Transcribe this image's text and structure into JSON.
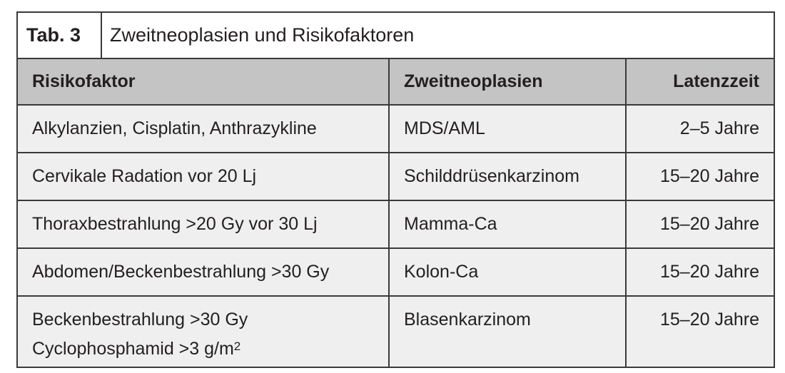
{
  "table": {
    "label": "Tab. 3",
    "caption": "Zweitneoplasien und Risikofaktoren",
    "headers": [
      "Risikofaktor",
      "Zweitneoplasien",
      "Latenzzeit"
    ],
    "rows": [
      {
        "risk": [
          "Alkylanzien, Cisplatin, Anthrazykline"
        ],
        "neoplasm": "MDS/AML",
        "latency": "2–5 Jahre"
      },
      {
        "risk": [
          "Cervikale Radation vor 20 Lj"
        ],
        "neoplasm": "Schilddrüsenkarzinom",
        "latency": "15–20 Jahre"
      },
      {
        "risk": [
          "Thoraxbestrahlung >20 Gy vor 30 Lj"
        ],
        "neoplasm": "Mamma-Ca",
        "latency": "15–20 Jahre"
      },
      {
        "risk": [
          "Abdomen/Beckenbestrahlung >30 Gy"
        ],
        "neoplasm": "Kolon-Ca",
        "latency": "15–20 Jahre"
      },
      {
        "risk": [
          "Beckenbestrahlung >30 Gy",
          "Cyclophosphamid >3 g/m",
          "2"
        ],
        "neoplasm": "Blasenkarzinom",
        "latency": "15–20 Jahre"
      }
    ]
  },
  "colors": {
    "header_bg": "#c4c4c4",
    "body_bg": "#efefef",
    "border": "#3a3a3a"
  }
}
